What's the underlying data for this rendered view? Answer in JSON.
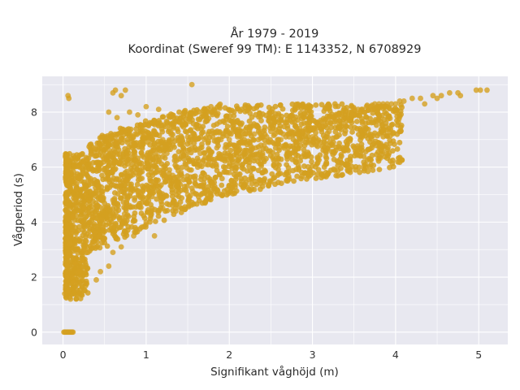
{
  "chart_data": {
    "type": "scatter",
    "title_line1": "År 1979 - 2019",
    "title_line2": "Koordinat (Sweref 99 TM): E 1143352, N 6708929",
    "xlabel": "Signifikant våghöjd (m)",
    "ylabel": "Vågperiod (s)",
    "xlim": [
      -0.25,
      5.35
    ],
    "ylim": [
      -0.45,
      9.3
    ],
    "x_ticks": [
      0,
      1,
      2,
      3,
      4,
      5
    ],
    "x_tick_labels": [
      "0",
      "1",
      "2",
      "3",
      "4",
      "5"
    ],
    "y_ticks": [
      0,
      2,
      4,
      6,
      8
    ],
    "y_tick_labels": [
      "0",
      "2",
      "4",
      "6",
      "8"
    ],
    "grid": true,
    "legend": "none",
    "marker_color": "#D4A020",
    "plot_background": "#E8E8F0",
    "series": [
      {
        "points": [
          [
            0.02,
            1.4
          ],
          [
            0.03,
            1.7
          ],
          [
            0.04,
            2.0
          ],
          [
            0.05,
            2.4
          ],
          [
            0.06,
            1.5
          ],
          [
            0.07,
            2.8
          ],
          [
            0.08,
            3.2
          ],
          [
            0.09,
            1.2
          ],
          [
            0.1,
            3.6
          ],
          [
            0.11,
            2.0
          ],
          [
            0.12,
            4.2
          ],
          [
            0.13,
            1.8
          ],
          [
            0.14,
            4.8
          ],
          [
            0.15,
            2.5
          ],
          [
            0.16,
            5.2
          ],
          [
            0.17,
            3.0
          ],
          [
            0.18,
            5.6
          ],
          [
            0.19,
            2.2
          ],
          [
            0.2,
            6.0
          ],
          [
            0.21,
            3.4
          ],
          [
            0.22,
            2.6
          ],
          [
            0.23,
            4.0
          ],
          [
            0.24,
            6.2
          ],
          [
            0.25,
            3.0
          ],
          [
            0.26,
            4.5
          ],
          [
            0.27,
            5.0
          ],
          [
            0.28,
            3.3
          ],
          [
            0.29,
            6.3
          ],
          [
            0.3,
            2.9
          ],
          [
            0.31,
            4.8
          ],
          [
            0.32,
            3.5
          ],
          [
            0.33,
            5.5
          ],
          [
            0.34,
            6.5
          ],
          [
            0.35,
            3.2
          ],
          [
            0.36,
            4.2
          ],
          [
            0.37,
            5.9
          ],
          [
            0.38,
            3.6
          ],
          [
            0.39,
            6.7
          ],
          [
            0.4,
            3.1
          ],
          [
            0.41,
            4.6
          ],
          [
            0.42,
            5.3
          ],
          [
            0.43,
            6.0
          ],
          [
            0.44,
            3.5
          ],
          [
            0.45,
            6.8
          ],
          [
            0.46,
            4.1
          ],
          [
            0.47,
            5.0
          ],
          [
            0.48,
            3.8
          ],
          [
            0.49,
            6.3
          ],
          [
            0.5,
            3.4
          ],
          [
            0.52,
            4.5
          ],
          [
            0.54,
            5.6
          ],
          [
            0.56,
            6.6
          ],
          [
            0.58,
            3.9
          ],
          [
            0.6,
            4.8
          ],
          [
            0.62,
            5.9
          ],
          [
            0.64,
            6.9
          ],
          [
            0.66,
            4.2
          ],
          [
            0.68,
            5.2
          ],
          [
            0.7,
            6.1
          ],
          [
            0.72,
            7.0
          ],
          [
            0.74,
            4.3
          ],
          [
            0.76,
            5.5
          ],
          [
            0.78,
            6.4
          ],
          [
            0.8,
            4.6
          ],
          [
            0.82,
            5.8
          ],
          [
            0.84,
            7.1
          ],
          [
            0.86,
            4.8
          ],
          [
            0.88,
            6.2
          ],
          [
            0.9,
            5.1
          ],
          [
            0.92,
            6.8
          ],
          [
            0.94,
            5.0
          ],
          [
            0.96,
            6.0
          ],
          [
            0.98,
            7.2
          ],
          [
            1.0,
            5.2
          ],
          [
            1.02,
            6.3
          ],
          [
            1.05,
            5.5
          ],
          [
            1.08,
            6.6
          ],
          [
            1.1,
            7.3
          ],
          [
            1.12,
            5.4
          ],
          [
            1.15,
            6.2
          ],
          [
            1.18,
            5.8
          ],
          [
            1.2,
            7.0
          ],
          [
            1.22,
            5.6
          ],
          [
            1.25,
            6.5
          ],
          [
            1.28,
            5.9
          ],
          [
            1.3,
            7.2
          ],
          [
            1.32,
            5.7
          ],
          [
            1.35,
            6.4
          ],
          [
            1.38,
            6.0
          ],
          [
            1.4,
            7.0
          ],
          [
            1.42,
            5.8
          ],
          [
            1.45,
            6.6
          ],
          [
            1.48,
            6.1
          ],
          [
            1.5,
            7.1
          ],
          [
            1.52,
            5.9
          ],
          [
            1.55,
            6.7
          ],
          [
            1.58,
            6.2
          ],
          [
            1.6,
            7.0
          ],
          [
            1.62,
            6.0
          ],
          [
            1.65,
            6.5
          ],
          [
            1.68,
            6.2
          ],
          [
            1.7,
            7.0
          ],
          [
            1.72,
            6.1
          ],
          [
            1.75,
            6.6
          ],
          [
            1.78,
            6.3
          ],
          [
            1.8,
            7.1
          ],
          [
            1.82,
            6.2
          ],
          [
            1.85,
            6.7
          ],
          [
            1.88,
            6.4
          ],
          [
            1.9,
            7.0
          ],
          [
            1.92,
            6.3
          ],
          [
            1.95,
            6.7
          ],
          [
            1.98,
            6.5
          ],
          [
            2.0,
            7.0
          ],
          [
            2.02,
            6.4
          ],
          [
            2.05,
            6.8
          ],
          [
            2.08,
            6.6
          ],
          [
            2.1,
            7.1
          ],
          [
            2.12,
            6.5
          ],
          [
            2.15,
            6.9
          ],
          [
            2.18,
            6.6
          ],
          [
            2.2,
            7.2
          ],
          [
            2.22,
            6.6
          ],
          [
            2.25,
            6.9
          ],
          [
            2.28,
            6.7
          ],
          [
            2.3,
            7.2
          ],
          [
            2.32,
            6.7
          ],
          [
            2.35,
            7.0
          ],
          [
            2.38,
            6.8
          ],
          [
            2.4,
            7.3
          ],
          [
            2.42,
            6.8
          ],
          [
            2.45,
            7.1
          ],
          [
            2.48,
            6.9
          ],
          [
            2.5,
            7.3
          ],
          [
            2.52,
            6.9
          ],
          [
            2.55,
            7.2
          ],
          [
            2.58,
            7.0
          ],
          [
            2.6,
            7.4
          ],
          [
            2.62,
            7.0
          ],
          [
            2.65,
            7.2
          ],
          [
            2.68,
            7.1
          ],
          [
            2.7,
            7.5
          ],
          [
            2.72,
            7.1
          ],
          [
            2.75,
            7.3
          ],
          [
            2.78,
            7.2
          ],
          [
            2.8,
            7.5
          ],
          [
            2.82,
            7.2
          ],
          [
            2.85,
            7.4
          ],
          [
            2.88,
            7.3
          ],
          [
            2.9,
            7.6
          ],
          [
            2.92,
            7.3
          ],
          [
            2.95,
            7.5
          ],
          [
            2.98,
            7.4
          ],
          [
            3.0,
            7.7
          ],
          [
            3.02,
            7.4
          ],
          [
            3.05,
            7.6
          ],
          [
            3.08,
            7.5
          ],
          [
            3.1,
            7.7
          ],
          [
            3.12,
            7.5
          ],
          [
            3.15,
            7.7
          ],
          [
            3.18,
            7.6
          ],
          [
            3.2,
            7.8
          ],
          [
            3.22,
            7.6
          ],
          [
            3.25,
            7.8
          ],
          [
            3.28,
            7.7
          ],
          [
            3.3,
            7.9
          ],
          [
            3.32,
            7.7
          ],
          [
            3.35,
            7.9
          ],
          [
            3.38,
            7.8
          ],
          [
            3.4,
            8.0
          ],
          [
            3.42,
            7.8
          ],
          [
            3.45,
            8.0
          ],
          [
            3.48,
            7.9
          ],
          [
            3.5,
            8.1
          ],
          [
            3.52,
            7.9
          ],
          [
            3.55,
            8.1
          ],
          [
            3.58,
            8.0
          ],
          [
            3.6,
            8.1
          ],
          [
            3.62,
            8.0
          ],
          [
            3.65,
            8.2
          ],
          [
            3.68,
            8.1
          ],
          [
            3.7,
            8.2
          ],
          [
            3.72,
            8.1
          ],
          [
            3.75,
            8.3
          ],
          [
            3.78,
            8.2
          ],
          [
            3.8,
            8.3
          ],
          [
            3.82,
            8.2
          ],
          [
            3.85,
            8.3
          ],
          [
            3.88,
            8.2
          ],
          [
            3.9,
            8.3
          ],
          [
            3.95,
            8.3
          ],
          [
            4.0,
            8.3
          ],
          [
            4.05,
            8.4
          ],
          [
            4.1,
            8.4
          ],
          [
            4.2,
            8.5
          ],
          [
            4.3,
            8.5
          ],
          [
            4.35,
            8.3
          ],
          [
            4.45,
            8.6
          ],
          [
            4.5,
            8.5
          ],
          [
            4.55,
            8.6
          ],
          [
            4.65,
            8.7
          ],
          [
            4.75,
            8.7
          ],
          [
            4.78,
            8.6
          ],
          [
            4.97,
            8.8
          ],
          [
            5.02,
            8.8
          ],
          [
            5.1,
            8.8
          ],
          [
            0.06,
            8.6
          ],
          [
            0.07,
            8.5
          ],
          [
            0.6,
            8.7
          ],
          [
            0.63,
            8.8
          ],
          [
            0.7,
            8.6
          ],
          [
            0.75,
            8.8
          ],
          [
            1.0,
            8.2
          ],
          [
            1.55,
            9.0
          ],
          [
            1.78,
            8.2
          ],
          [
            0.8,
            8.0
          ],
          [
            0.9,
            7.9
          ],
          [
            1.15,
            8.1
          ],
          [
            0.55,
            8.0
          ],
          [
            0.65,
            7.8
          ],
          [
            0.02,
            0.0
          ],
          [
            0.03,
            0.0
          ],
          [
            0.04,
            0.0
          ],
          [
            0.05,
            0.0
          ],
          [
            0.06,
            0.0
          ],
          [
            0.07,
            0.0
          ],
          [
            0.08,
            0.0
          ],
          [
            0.09,
            0.0
          ],
          [
            0.1,
            0.0
          ],
          [
            0.11,
            0.0
          ],
          [
            0.01,
            0.0
          ],
          [
            0.12,
            0.0
          ],
          [
            0.4,
            1.9
          ],
          [
            0.45,
            2.2
          ],
          [
            0.55,
            2.4
          ],
          [
            0.6,
            2.9
          ],
          [
            0.7,
            3.1
          ],
          [
            0.85,
            3.5
          ],
          [
            1.0,
            4.0
          ],
          [
            1.1,
            3.5
          ],
          [
            1.2,
            4.5
          ],
          [
            1.35,
            4.5
          ],
          [
            1.5,
            5.0
          ],
          [
            1.65,
            5.3
          ],
          [
            1.8,
            5.4
          ],
          [
            2.0,
            5.8
          ],
          [
            2.2,
            6.2
          ],
          [
            2.4,
            6.5
          ],
          [
            2.6,
            6.7
          ],
          [
            2.8,
            6.9
          ],
          [
            3.0,
            7.1
          ],
          [
            3.2,
            7.3
          ],
          [
            3.4,
            7.5
          ],
          [
            3.6,
            7.6
          ],
          [
            3.8,
            7.8
          ],
          [
            4.0,
            8.0
          ]
        ]
      }
    ]
  }
}
